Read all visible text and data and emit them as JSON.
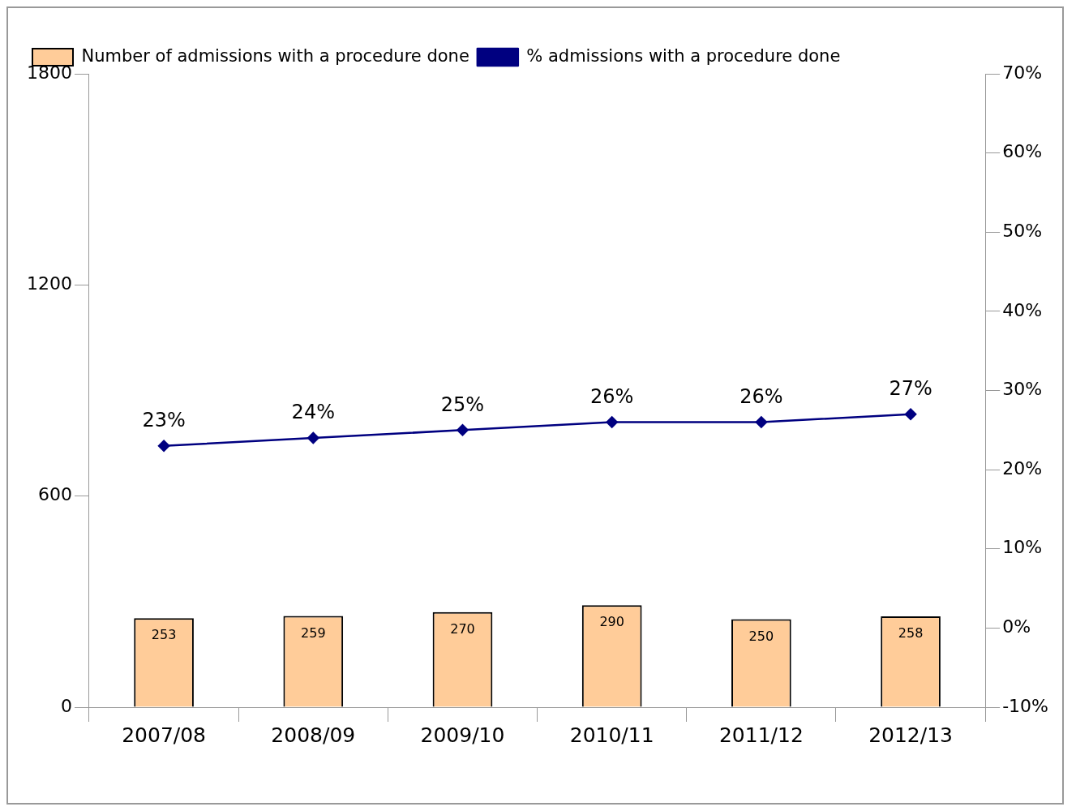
{
  "chart_data": {
    "type": "bar",
    "categories": [
      "2007/08",
      "2008/09",
      "2009/10",
      "2010/11",
      "2011/12",
      "2012/13"
    ],
    "series": [
      {
        "name": "Number of admissions with a procedure done",
        "color": "#ffcc99",
        "values": [
          253,
          259,
          270,
          290,
          250,
          258
        ],
        "value_labels": [
          "253",
          "259",
          "270",
          "290",
          "250",
          "258"
        ]
      },
      {
        "name": "% admissions with a procedure done",
        "type": "line",
        "axis": "y2",
        "color": "#000080",
        "values": [
          23,
          24,
          25,
          26,
          26,
          27
        ],
        "value_labels": [
          "23%",
          "24%",
          "25%",
          "26%",
          "26%",
          "27%"
        ]
      }
    ],
    "ylim": [
      0,
      1800
    ],
    "yticks": [
      0,
      600,
      1200,
      1800
    ],
    "y2lim": [
      -10,
      70
    ],
    "y2ticks": [
      {
        "value": -10,
        "label": "-10%"
      },
      {
        "value": 0,
        "label": "0%"
      },
      {
        "value": 10,
        "label": "10%"
      },
      {
        "value": 20,
        "label": "20%"
      },
      {
        "value": 30,
        "label": "30%"
      },
      {
        "value": 40,
        "label": "40%"
      },
      {
        "value": 50,
        "label": "50%"
      },
      {
        "value": 60,
        "label": "60%"
      },
      {
        "value": 70,
        "label": "70%"
      }
    ],
    "grid": false,
    "legend": "top left",
    "marker": "diamond",
    "line_style": "solid"
  }
}
